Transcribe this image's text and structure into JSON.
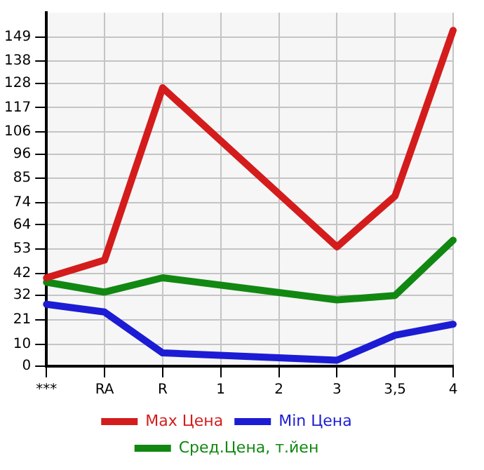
{
  "chart_data": {
    "type": "line",
    "categories": [
      "***",
      "RA",
      "R",
      "1",
      "2",
      "3",
      "3,5",
      "4"
    ],
    "series": [
      {
        "name": "Max Цена",
        "color": "#d41c1c",
        "values": [
          40,
          48,
          126,
          null,
          null,
          54,
          77,
          152
        ]
      },
      {
        "name": "Min Цена",
        "color": "#1c1cd4",
        "values": [
          28,
          24.5,
          6,
          null,
          null,
          2.7,
          14,
          19
        ]
      },
      {
        "name": "Сред.Цена, т.йен",
        "color": "#118811",
        "values": [
          38,
          33.5,
          40,
          null,
          null,
          30,
          32,
          57
        ]
      }
    ],
    "ylim": [
      0,
      160
    ],
    "yticks": [
      0,
      10,
      21,
      32,
      42,
      53,
      64,
      74,
      85,
      96,
      106,
      117,
      128,
      138,
      149
    ],
    "grid": true,
    "legend": "bottom",
    "marker": "none",
    "line_style": "solid"
  }
}
